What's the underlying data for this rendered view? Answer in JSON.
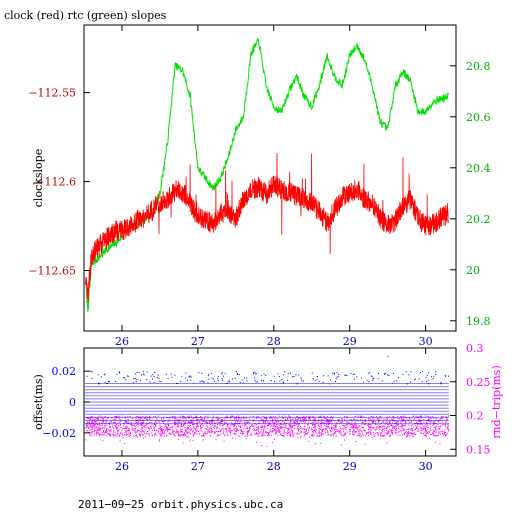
{
  "chart_data": [
    {
      "type": "line",
      "title": "clock (red) rtc (green) slopes",
      "xlabel": "",
      "ylabel": "clockslope",
      "xlim": [
        25.5,
        30.4
      ],
      "ylim": [
        -112.684,
        -112.512
      ],
      "y2lim": [
        19.76,
        20.96
      ],
      "x_ticks": [
        26,
        27,
        28,
        29,
        30
      ],
      "x_tick_labels": [
        "26",
        "27",
        "28",
        "29",
        "30"
      ],
      "y_ticks": [
        -112.55,
        -112.6,
        -112.65
      ],
      "y_tick_labels": [
        "−112.55",
        "−112.6",
        "−112.65"
      ],
      "y2_ticks": [
        20.8,
        20.6,
        20.4,
        20.2,
        20.0,
        19.8
      ],
      "y2_tick_labels": [
        "20.8",
        "20.6",
        "20.4",
        "20.2",
        "20",
        "19.8"
      ],
      "colors": {
        "clock": "#ff0000",
        "rtc": "#00e000",
        "axis_left": "#cc0000",
        "axis_right": "#00b000"
      },
      "series": [
        {
          "name": "clock",
          "axis": "left",
          "x": [
            25.52,
            25.55,
            25.6,
            25.7,
            25.8,
            25.9,
            26.0,
            26.1,
            26.2,
            26.3,
            26.4,
            26.5,
            26.6,
            26.7,
            26.8,
            26.9,
            27.0,
            27.1,
            27.2,
            27.3,
            27.4,
            27.5,
            27.6,
            27.7,
            27.8,
            27.9,
            28.0,
            28.1,
            28.2,
            28.3,
            28.4,
            28.5,
            28.6,
            28.7,
            28.8,
            28.9,
            29.0,
            29.1,
            29.2,
            29.3,
            29.4,
            29.5,
            29.6,
            29.7,
            29.8,
            29.9,
            30.0,
            30.1,
            30.2,
            30.3
          ],
          "values": [
            -112.655,
            -112.665,
            -112.642,
            -112.636,
            -112.632,
            -112.628,
            -112.628,
            -112.625,
            -112.622,
            -112.62,
            -112.616,
            -112.612,
            -112.61,
            -112.605,
            -112.606,
            -112.612,
            -112.62,
            -112.622,
            -112.624,
            -112.618,
            -112.616,
            -112.621,
            -112.61,
            -112.605,
            -112.603,
            -112.607,
            -112.602,
            -112.605,
            -112.606,
            -112.608,
            -112.61,
            -112.612,
            -112.617,
            -112.623,
            -112.616,
            -112.609,
            -112.606,
            -112.604,
            -112.61,
            -112.612,
            -112.62,
            -112.625,
            -112.622,
            -112.614,
            -112.61,
            -112.62,
            -112.625,
            -112.624,
            -112.62,
            -112.618
          ]
        },
        {
          "name": "rtc",
          "axis": "right",
          "x": [
            25.52,
            25.55,
            25.6,
            25.7,
            25.8,
            25.9,
            26.0,
            26.1,
            26.2,
            26.3,
            26.4,
            26.5,
            26.6,
            26.7,
            26.8,
            26.9,
            27.0,
            27.1,
            27.2,
            27.3,
            27.4,
            27.5,
            27.6,
            27.7,
            27.8,
            27.9,
            28.0,
            28.1,
            28.2,
            28.3,
            28.4,
            28.5,
            28.6,
            28.7,
            28.8,
            28.9,
            29.0,
            29.1,
            29.2,
            29.3,
            29.4,
            29.5,
            29.6,
            29.7,
            29.8,
            29.9,
            30.0,
            30.1,
            30.2,
            30.3
          ],
          "values": [
            19.98,
            19.84,
            20.02,
            20.05,
            20.08,
            20.1,
            20.13,
            20.16,
            20.18,
            20.2,
            20.22,
            20.3,
            20.5,
            20.8,
            20.78,
            20.68,
            20.4,
            20.36,
            20.32,
            20.36,
            20.44,
            20.55,
            20.6,
            20.85,
            20.9,
            20.72,
            20.64,
            20.62,
            20.7,
            20.76,
            20.68,
            20.64,
            20.72,
            20.84,
            20.76,
            20.72,
            20.84,
            20.88,
            20.82,
            20.72,
            20.58,
            20.55,
            20.72,
            20.78,
            20.74,
            20.62,
            20.62,
            20.66,
            20.67,
            20.68
          ]
        }
      ]
    },
    {
      "type": "scatter",
      "title": "",
      "xlabel": "",
      "ylabel": "offset(ms)",
      "y2label": "rnd−trip(ms)",
      "xlim": [
        25.5,
        30.4
      ],
      "ylim": [
        -0.035,
        0.035
      ],
      "y2lim": [
        0.14,
        0.3
      ],
      "x_ticks": [
        26,
        27,
        28,
        29,
        30
      ],
      "x_tick_labels": [
        "26",
        "27",
        "28",
        "29",
        "30"
      ],
      "y_ticks": [
        0.02,
        0,
        -0.02
      ],
      "y_tick_labels": [
        "0.02",
        "0",
        "−0.02"
      ],
      "y2_ticks": [
        0.3,
        0.25,
        0.2,
        0.15
      ],
      "y2_tick_labels": [
        "0.3",
        "0.25",
        "0.2",
        "0.15"
      ],
      "colors": {
        "offset": "#0000ff",
        "rndtrip": "#ff00ff"
      },
      "series": [
        {
          "name": "offset",
          "axis": "left",
          "band": [
            -0.014,
            0.012
          ],
          "outliers": [
            [
              25.6,
              0.02
            ],
            [
              26.4,
              0.018
            ],
            [
              27.5,
              0.02
            ],
            [
              28.5,
              0.019
            ],
            [
              29.5,
              0.03
            ],
            [
              30.1,
              0.017
            ]
          ]
        },
        {
          "name": "rnd-trip",
          "axis": "right",
          "band": [
            0.17,
            0.2
          ],
          "outliers": [
            [
              26.8,
              0.16
            ],
            [
              27.9,
              0.155
            ],
            [
              29.2,
              0.158
            ]
          ]
        }
      ]
    }
  ],
  "footer": "2011−09−25  orbit.physics.ubc.ca"
}
